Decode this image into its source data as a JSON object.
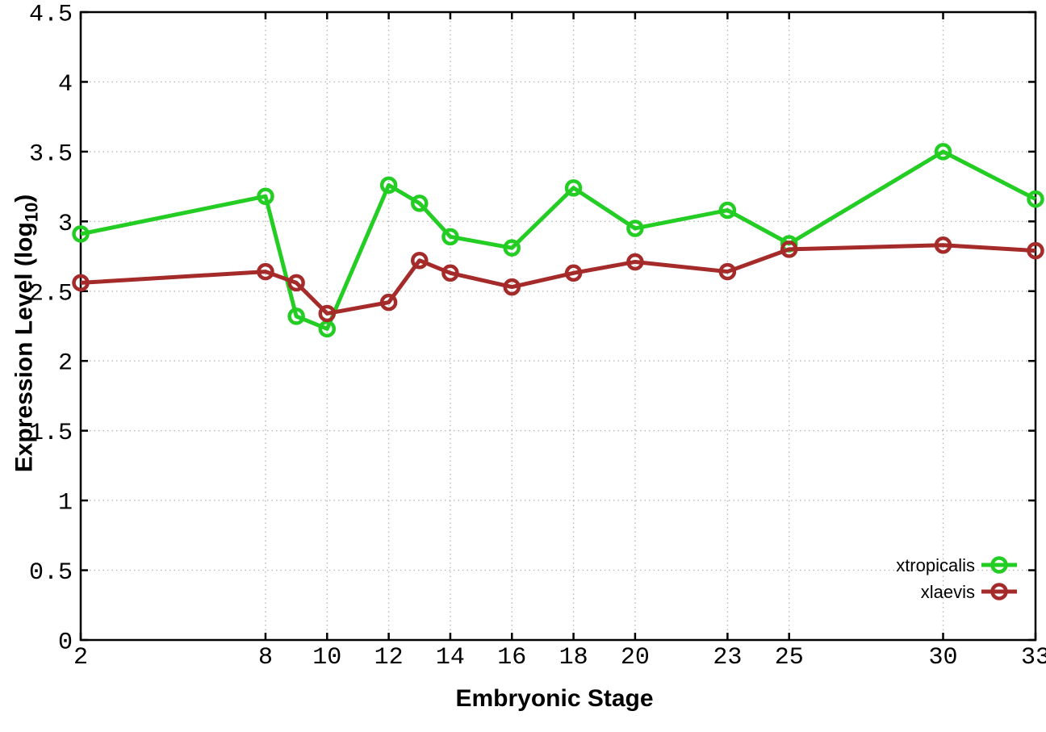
{
  "chart_data": {
    "type": "line",
    "title": "",
    "xlabel": "Embryonic Stage",
    "ylabel": {
      "text": "Expression Level (log",
      "subscript": "10",
      "suffix": ")"
    },
    "xlim": [
      2,
      33
    ],
    "ylim": [
      0,
      4.5
    ],
    "grid": true,
    "x": [
      2,
      8,
      9,
      10,
      12,
      13,
      14,
      16,
      18,
      20,
      23,
      25,
      30,
      33
    ],
    "xticks": [
      2,
      8,
      10,
      12,
      14,
      16,
      18,
      20,
      23,
      25,
      30,
      33
    ],
    "xtick_labels": [
      "2",
      "8",
      "10",
      "12",
      "14",
      "16",
      "18",
      "20",
      "23",
      "25",
      "30",
      "33"
    ],
    "yticks": [
      0,
      0.5,
      1,
      1.5,
      2,
      2.5,
      3,
      3.5,
      4,
      4.5
    ],
    "ytick_labels": [
      "0",
      "0.5",
      "1",
      "1.5",
      "2",
      "2.5",
      "3",
      "3.5",
      "4",
      "4.5"
    ],
    "legend": {
      "position": "inside-bottom-right",
      "entries": [
        "xtropicalis",
        "xlaevis"
      ]
    },
    "series": [
      {
        "name": "xtropicalis",
        "color": "#23cd23",
        "marker": "open-circle",
        "values": [
          2.91,
          3.18,
          2.32,
          2.23,
          3.26,
          3.13,
          2.89,
          2.81,
          3.24,
          2.95,
          3.08,
          2.84,
          3.5,
          3.16
        ]
      },
      {
        "name": "xlaevis",
        "color": "#a52a2a",
        "marker": "open-circle",
        "values": [
          2.56,
          2.64,
          2.56,
          2.34,
          2.42,
          2.72,
          2.63,
          2.53,
          2.63,
          2.71,
          2.64,
          2.8,
          2.83,
          2.79
        ]
      }
    ]
  },
  "colors": {
    "background": "#ffffff",
    "plot_border": "#000000",
    "grid": "#b9b9b9",
    "text": "#000000"
  }
}
